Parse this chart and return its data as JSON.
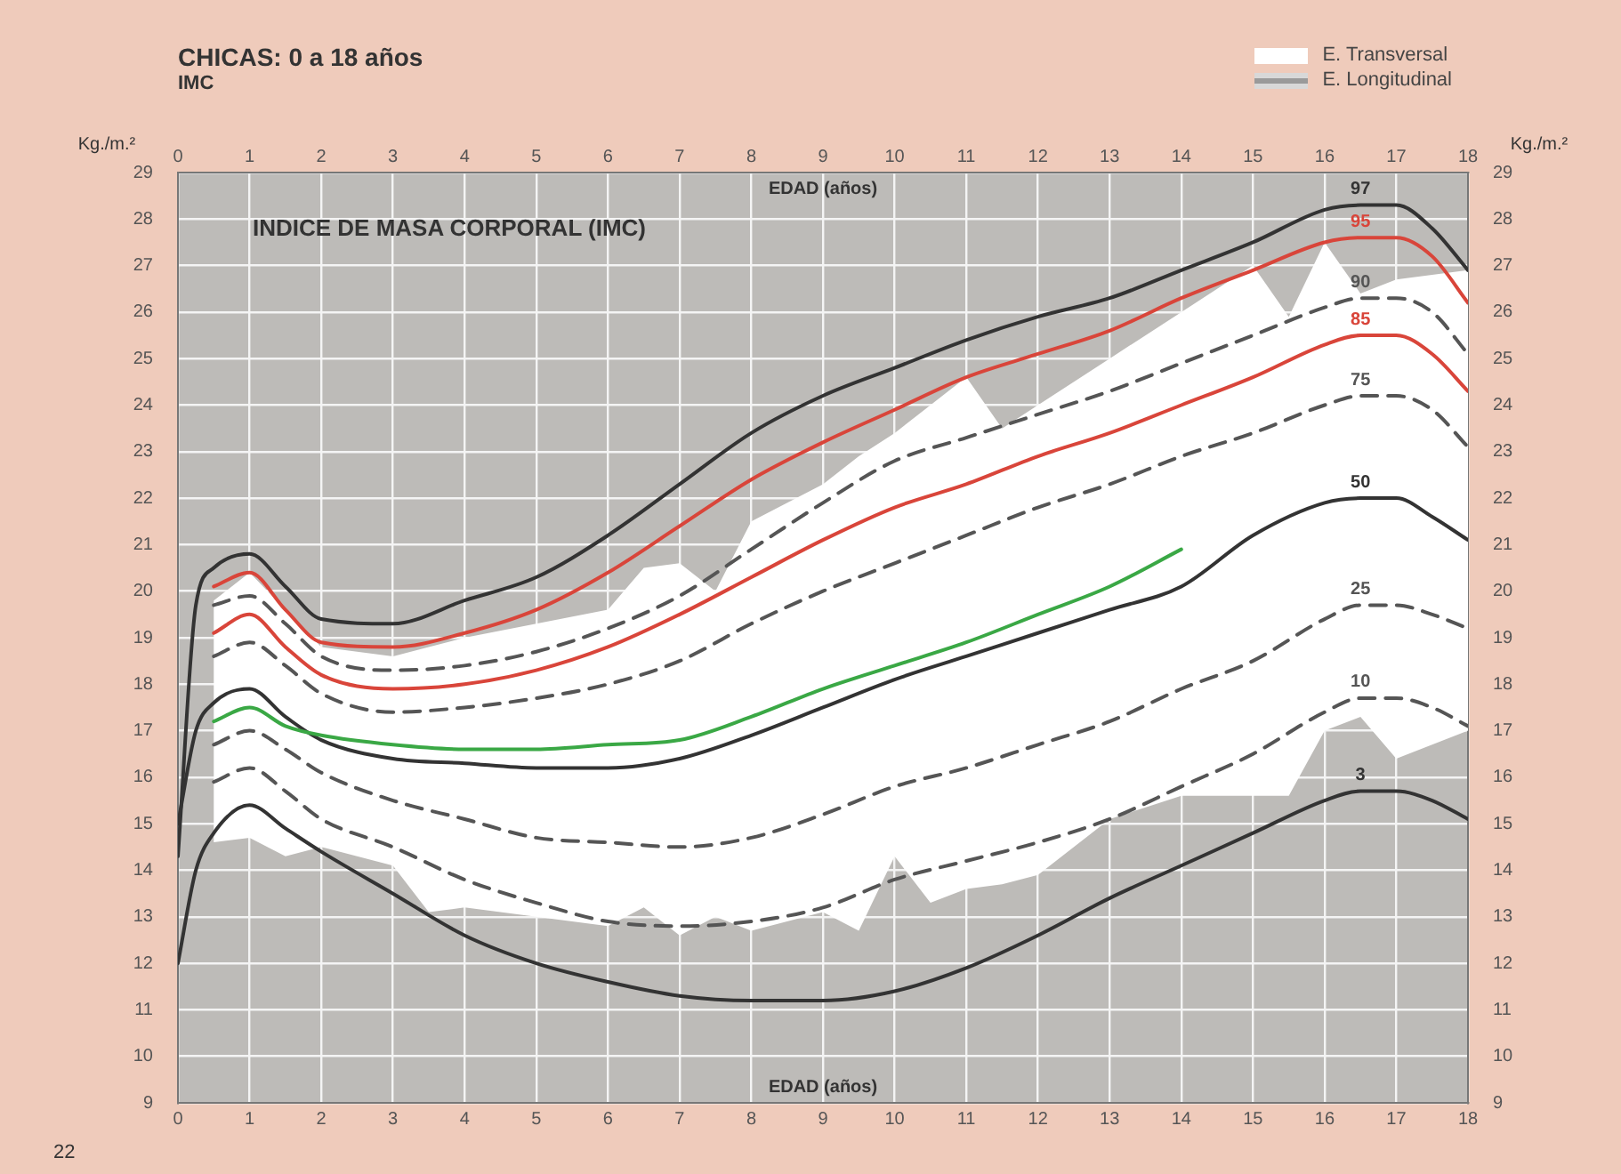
{
  "chart_data": {
    "type": "line",
    "title": "CHICAS: 0 a 18 años",
    "subtitle": "IMC",
    "xlabel": "EDAD (años)",
    "x2label": "EDAD (años)",
    "ylabel": "Kg./m.²",
    "y2label": "Kg./m.²",
    "annotations": [
      "INDICE DE MASA CORPORAL (IMC)",
      "E. Longitudinal",
      "22"
    ],
    "x": [
      0,
      0.25,
      0.5,
      1,
      1.5,
      2,
      3,
      4,
      5,
      6,
      7,
      8,
      9,
      10,
      11,
      12,
      13,
      14,
      15,
      16,
      16.5,
      17,
      17.5,
      18
    ],
    "series": [
      {
        "name": "E. Transversal",
        "type": "area",
        "color": "#ffffff",
        "x": [
          0.5,
          1,
          1.5,
          2,
          3,
          3.5,
          4,
          5,
          6,
          6.5,
          7,
          7.5,
          8,
          9,
          9.5,
          10,
          10.5,
          11,
          11.5,
          12,
          13,
          14,
          15,
          15.5,
          16,
          16.5,
          17,
          18
        ],
        "values": [
          null,
          null,
          null,
          null,
          null,
          null,
          null,
          null,
          null,
          null,
          null,
          null,
          null,
          null,
          null,
          null,
          null,
          null,
          null,
          null,
          null,
          null,
          null,
          null,
          null,
          null,
          null,
          null
        ],
        "upper": [
          19.8,
          20.4,
          19.6,
          18.8,
          18.6,
          18.8,
          19.0,
          19.3,
          19.6,
          20.5,
          20.6,
          20.0,
          21.5,
          22.3,
          22.9,
          23.4,
          24.0,
          24.6,
          23.5,
          24.0,
          25.0,
          26.0,
          27.0,
          25.9,
          27.5,
          26.4,
          26.7,
          26.9
        ],
        "lower": [
          14.6,
          14.7,
          14.3,
          14.5,
          14.1,
          13.1,
          13.2,
          13.0,
          12.8,
          13.2,
          12.6,
          13.0,
          12.7,
          13.1,
          12.7,
          14.3,
          13.3,
          13.6,
          13.7,
          13.9,
          15.1,
          15.6,
          15.6,
          15.6,
          17.0,
          17.3,
          16.4,
          17.0
        ]
      },
      {
        "name": "97",
        "color": "#333333",
        "values": [
          14.3,
          19.7,
          20.5,
          20.8,
          20.1,
          19.4,
          19.3,
          19.8,
          20.3,
          21.2,
          22.3,
          23.4,
          24.2,
          24.8,
          25.4,
          25.9,
          26.3,
          26.9,
          27.5,
          28.2,
          28.3,
          28.3,
          27.8,
          26.9
        ]
      },
      {
        "name": "95",
        "color": "#d9453a",
        "values": [
          null,
          null,
          20.1,
          20.4,
          19.6,
          18.9,
          18.8,
          19.1,
          19.6,
          20.4,
          21.4,
          22.4,
          23.2,
          23.9,
          24.6,
          25.1,
          25.6,
          26.3,
          26.9,
          27.5,
          27.6,
          27.6,
          27.2,
          26.2
        ]
      },
      {
        "name": "90",
        "color": "#555555",
        "line_style": "dashed",
        "values": [
          null,
          null,
          19.7,
          19.9,
          19.3,
          18.6,
          18.3,
          18.4,
          18.7,
          19.2,
          19.9,
          20.9,
          21.9,
          22.8,
          23.3,
          23.8,
          24.3,
          24.9,
          25.5,
          26.1,
          26.3,
          26.3,
          26.0,
          25.1
        ]
      },
      {
        "name": "85",
        "color": "#d9453a",
        "values": [
          null,
          null,
          19.1,
          19.5,
          18.8,
          18.2,
          17.9,
          18.0,
          18.3,
          18.8,
          19.5,
          20.3,
          21.1,
          21.8,
          22.3,
          22.9,
          23.4,
          24.0,
          24.6,
          25.3,
          25.5,
          25.5,
          25.1,
          24.3
        ]
      },
      {
        "name": "75",
        "color": "#555555",
        "line_style": "dashed",
        "values": [
          null,
          null,
          18.6,
          18.9,
          18.4,
          17.8,
          17.4,
          17.5,
          17.7,
          18.0,
          18.5,
          19.3,
          20.0,
          20.6,
          21.2,
          21.8,
          22.3,
          22.9,
          23.4,
          24.0,
          24.2,
          24.2,
          23.9,
          23.1
        ]
      },
      {
        "color": "#3aa845",
        "values": [
          null,
          null,
          17.2,
          17.5,
          17.1,
          16.9,
          16.7,
          16.6,
          16.6,
          16.7,
          16.8,
          17.3,
          17.9,
          18.4,
          18.9,
          19.5,
          20.1,
          20.9,
          null,
          null,
          null,
          null,
          null,
          null
        ]
      },
      {
        "name": "50",
        "color": "#333333",
        "values": [
          15.0,
          17.0,
          17.6,
          17.9,
          17.3,
          16.8,
          16.4,
          16.3,
          16.2,
          16.2,
          16.4,
          16.9,
          17.5,
          18.1,
          18.6,
          19.1,
          19.6,
          20.1,
          21.2,
          21.9,
          22.0,
          22.0,
          21.6,
          21.1
        ]
      },
      {
        "name": "25",
        "color": "#555555",
        "line_style": "dashed",
        "values": [
          null,
          null,
          16.7,
          17.0,
          16.6,
          16.1,
          15.5,
          15.1,
          14.7,
          14.6,
          14.5,
          14.7,
          15.2,
          15.8,
          16.2,
          16.7,
          17.2,
          17.9,
          18.5,
          19.4,
          19.7,
          19.7,
          19.5,
          19.2
        ]
      },
      {
        "name": "10",
        "color": "#555555",
        "line_style": "dashed",
        "values": [
          null,
          null,
          15.9,
          16.2,
          15.7,
          15.1,
          14.5,
          13.8,
          13.3,
          12.9,
          12.8,
          12.9,
          13.2,
          13.8,
          14.2,
          14.6,
          15.1,
          15.8,
          16.5,
          17.4,
          17.7,
          17.7,
          17.5,
          17.1
        ]
      },
      {
        "name": "3",
        "color": "#333333",
        "values": [
          12.0,
          14.0,
          14.8,
          15.4,
          14.9,
          14.4,
          13.5,
          12.6,
          12.0,
          11.6,
          11.3,
          11.2,
          11.2,
          11.4,
          11.9,
          12.6,
          13.4,
          14.1,
          14.8,
          15.5,
          15.7,
          15.7,
          15.5,
          15.1
        ]
      }
    ],
    "xlim": [
      0,
      18
    ],
    "xticks": [
      0,
      1,
      2,
      3,
      4,
      5,
      6,
      7,
      8,
      9,
      10,
      11,
      12,
      13,
      14,
      15,
      16,
      17,
      18
    ],
    "x2lim": [
      0,
      18
    ],
    "x2ticks": [
      0,
      1,
      2,
      3,
      4,
      5,
      6,
      7,
      8,
      9,
      10,
      11,
      12,
      13,
      14,
      15,
      16,
      17,
      18
    ],
    "ylim": [
      9,
      29
    ],
    "yticks": [
      9,
      10,
      11,
      12,
      13,
      14,
      15,
      16,
      17,
      18,
      19,
      20,
      21,
      22,
      23,
      24,
      25,
      26,
      27,
      28,
      29
    ],
    "y2lim": [
      9,
      29
    ],
    "y2ticks": [
      9,
      10,
      11,
      12,
      13,
      14,
      15,
      16,
      17,
      18,
      19,
      20,
      21,
      22,
      23,
      24,
      25,
      26,
      27,
      28,
      29
    ],
    "grid": true,
    "legend": "top right",
    "marker": "none",
    "line_style": "solid"
  }
}
